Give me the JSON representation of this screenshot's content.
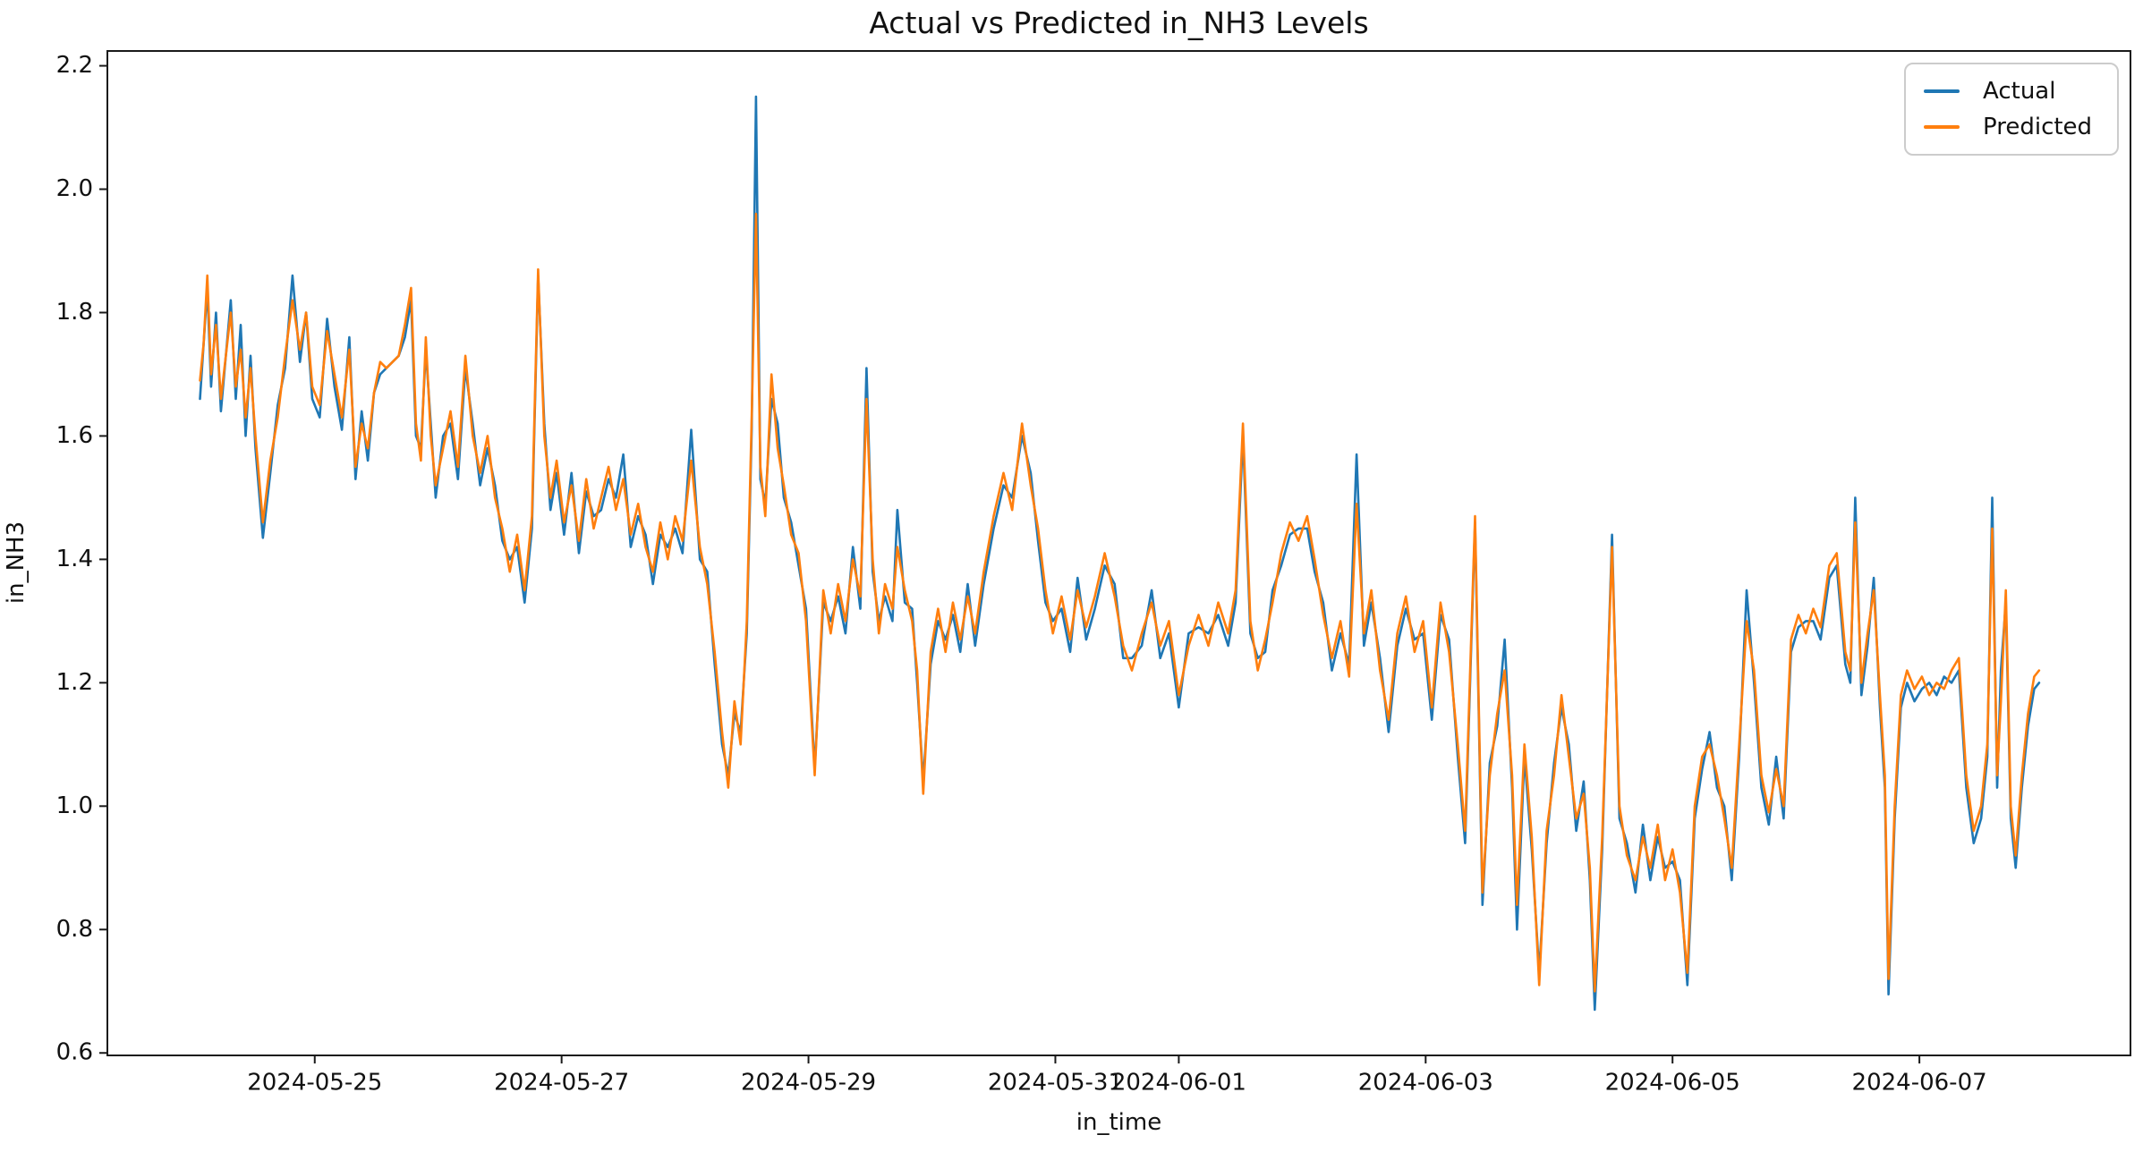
{
  "figure": {
    "title": "Actual vs Predicted in_NH3 Levels",
    "xlabel": "in_time",
    "ylabel": "in_NH3"
  },
  "legend": {
    "entries": [
      {
        "label": "Actual",
        "color": "#1f77b4"
      },
      {
        "label": "Predicted",
        "color": "#ff7f0e"
      }
    ],
    "position": "upper right"
  },
  "chart_data": {
    "type": "line",
    "title": "Actual vs Predicted in_NH3 Levels",
    "xlabel": "in_time",
    "ylabel": "in_NH3",
    "x_unit": "days since 2024-05-24 00:00",
    "xlim": [
      -0.68,
      15.71
    ],
    "ylim": [
      0.596,
      2.224
    ],
    "grid": false,
    "legend_position": "upper right",
    "yticks": [
      0.6,
      0.8,
      1.0,
      1.2,
      1.4,
      1.6,
      1.8,
      2.0,
      2.2
    ],
    "xticks": [
      {
        "d": 1,
        "label": "2024-05-25"
      },
      {
        "d": 3,
        "label": "2024-05-27"
      },
      {
        "d": 5,
        "label": "2024-05-29"
      },
      {
        "d": 7,
        "label": "2024-05-31"
      },
      {
        "d": 8,
        "label": "2024-06-01"
      },
      {
        "d": 10,
        "label": "2024-06-03"
      },
      {
        "d": 12,
        "label": "2024-06-05"
      },
      {
        "d": 14,
        "label": "2024-06-07"
      }
    ],
    "x": [
      0.07,
      0.1,
      0.13,
      0.16,
      0.2,
      0.24,
      0.28,
      0.32,
      0.36,
      0.4,
      0.44,
      0.48,
      0.52,
      0.58,
      0.64,
      0.7,
      0.76,
      0.82,
      0.88,
      0.93,
      0.98,
      1.04,
      1.1,
      1.16,
      1.22,
      1.28,
      1.33,
      1.38,
      1.43,
      1.48,
      1.53,
      1.58,
      1.63,
      1.68,
      1.73,
      1.78,
      1.82,
      1.86,
      1.9,
      1.94,
      1.98,
      2.04,
      2.1,
      2.16,
      2.22,
      2.28,
      2.34,
      2.4,
      2.46,
      2.52,
      2.58,
      2.64,
      2.7,
      2.76,
      2.81,
      2.86,
      2.91,
      2.96,
      3.02,
      3.08,
      3.14,
      3.2,
      3.26,
      3.32,
      3.38,
      3.44,
      3.5,
      3.56,
      3.62,
      3.68,
      3.74,
      3.8,
      3.86,
      3.92,
      3.98,
      4.05,
      4.12,
      4.18,
      4.24,
      4.3,
      4.35,
      4.4,
      4.45,
      4.5,
      4.54,
      4.575,
      4.61,
      4.65,
      4.7,
      4.75,
      4.8,
      4.86,
      4.92,
      4.98,
      5.05,
      5.12,
      5.18,
      5.24,
      5.3,
      5.36,
      5.42,
      5.47,
      5.52,
      5.57,
      5.62,
      5.68,
      5.72,
      5.78,
      5.84,
      5.88,
      5.93,
      5.99,
      6.05,
      6.11,
      6.17,
      6.23,
      6.29,
      6.35,
      6.42,
      6.5,
      6.58,
      6.65,
      6.73,
      6.8,
      6.86,
      6.92,
      6.98,
      7.05,
      7.12,
      7.18,
      7.25,
      7.32,
      7.4,
      7.48,
      7.55,
      7.62,
      7.7,
      7.78,
      7.85,
      7.92,
      8.0,
      8.08,
      8.16,
      8.24,
      8.32,
      8.4,
      8.46,
      8.52,
      8.58,
      8.64,
      8.7,
      8.76,
      8.83,
      8.9,
      8.97,
      9.04,
      9.1,
      9.17,
      9.24,
      9.31,
      9.38,
      9.44,
      9.5,
      9.56,
      9.63,
      9.7,
      9.77,
      9.84,
      9.91,
      9.98,
      10.05,
      10.12,
      10.19,
      10.26,
      10.32,
      10.4,
      10.46,
      10.52,
      10.58,
      10.64,
      10.7,
      10.74,
      10.8,
      10.86,
      10.92,
      10.98,
      11.04,
      11.1,
      11.16,
      11.22,
      11.28,
      11.33,
      11.37,
      11.43,
      11.51,
      11.57,
      11.63,
      11.7,
      11.76,
      11.82,
      11.88,
      11.94,
      12.0,
      12.06,
      12.12,
      12.18,
      12.24,
      12.3,
      12.36,
      12.42,
      12.48,
      12.54,
      12.6,
      12.66,
      12.72,
      12.78,
      12.84,
      12.9,
      12.96,
      13.02,
      13.08,
      13.14,
      13.2,
      13.27,
      13.33,
      13.4,
      13.44,
      13.48,
      13.53,
      13.58,
      13.63,
      13.68,
      13.72,
      13.75,
      13.8,
      13.85,
      13.9,
      13.96,
      14.02,
      14.08,
      14.14,
      14.2,
      14.26,
      14.32,
      14.38,
      14.44,
      14.5,
      14.55,
      14.59,
      14.63,
      14.66,
      14.7,
      14.74,
      14.78,
      14.83,
      14.88,
      14.93,
      14.97
    ],
    "series": [
      {
        "name": "Actual",
        "color": "#1f77b4",
        "values": [
          1.66,
          1.75,
          1.84,
          1.68,
          1.8,
          1.64,
          1.73,
          1.82,
          1.66,
          1.78,
          1.6,
          1.73,
          1.58,
          1.435,
          1.54,
          1.65,
          1.71,
          1.86,
          1.72,
          1.8,
          1.66,
          1.63,
          1.79,
          1.68,
          1.61,
          1.76,
          1.53,
          1.64,
          1.56,
          1.67,
          1.7,
          1.71,
          1.72,
          1.73,
          1.76,
          1.82,
          1.6,
          1.58,
          1.74,
          1.62,
          1.5,
          1.6,
          1.62,
          1.53,
          1.71,
          1.62,
          1.52,
          1.58,
          1.52,
          1.43,
          1.4,
          1.42,
          1.33,
          1.45,
          1.86,
          1.62,
          1.48,
          1.54,
          1.44,
          1.54,
          1.41,
          1.51,
          1.47,
          1.48,
          1.53,
          1.5,
          1.57,
          1.42,
          1.47,
          1.44,
          1.36,
          1.44,
          1.42,
          1.45,
          1.41,
          1.61,
          1.4,
          1.38,
          1.23,
          1.1,
          1.05,
          1.15,
          1.12,
          1.28,
          1.61,
          2.15,
          1.53,
          1.49,
          1.66,
          1.62,
          1.5,
          1.46,
          1.39,
          1.32,
          1.06,
          1.33,
          1.3,
          1.34,
          1.28,
          1.42,
          1.32,
          1.71,
          1.38,
          1.3,
          1.34,
          1.3,
          1.48,
          1.33,
          1.32,
          1.2,
          1.04,
          1.23,
          1.3,
          1.27,
          1.31,
          1.25,
          1.36,
          1.26,
          1.36,
          1.45,
          1.52,
          1.5,
          1.6,
          1.54,
          1.43,
          1.33,
          1.3,
          1.32,
          1.25,
          1.37,
          1.27,
          1.32,
          1.39,
          1.36,
          1.24,
          1.24,
          1.26,
          1.35,
          1.24,
          1.28,
          1.16,
          1.28,
          1.29,
          1.28,
          1.31,
          1.26,
          1.33,
          1.6,
          1.28,
          1.24,
          1.25,
          1.35,
          1.39,
          1.44,
          1.45,
          1.45,
          1.38,
          1.33,
          1.22,
          1.28,
          1.23,
          1.57,
          1.26,
          1.33,
          1.24,
          1.12,
          1.26,
          1.32,
          1.27,
          1.28,
          1.14,
          1.31,
          1.27,
          1.08,
          0.94,
          1.46,
          0.84,
          1.07,
          1.13,
          1.27,
          1.03,
          0.8,
          1.08,
          0.93,
          0.73,
          0.94,
          1.07,
          1.16,
          1.1,
          0.96,
          1.04,
          0.88,
          0.67,
          0.93,
          1.44,
          0.98,
          0.94,
          0.86,
          0.97,
          0.88,
          0.95,
          0.9,
          0.91,
          0.88,
          0.71,
          0.98,
          1.06,
          1.12,
          1.03,
          1.0,
          0.88,
          1.08,
          1.35,
          1.2,
          1.03,
          0.97,
          1.08,
          0.98,
          1.25,
          1.29,
          1.3,
          1.3,
          1.27,
          1.37,
          1.39,
          1.23,
          1.2,
          1.5,
          1.18,
          1.26,
          1.37,
          1.16,
          1.03,
          0.695,
          0.98,
          1.16,
          1.2,
          1.17,
          1.19,
          1.2,
          1.18,
          1.21,
          1.2,
          1.22,
          1.03,
          0.94,
          0.98,
          1.08,
          1.5,
          1.03,
          1.22,
          1.33,
          0.98,
          0.9,
          1.03,
          1.13,
          1.19,
          1.2
        ]
      },
      {
        "name": "Predicted",
        "color": "#ff7f0e",
        "values": [
          1.69,
          1.75,
          1.86,
          1.7,
          1.78,
          1.66,
          1.73,
          1.8,
          1.68,
          1.74,
          1.63,
          1.71,
          1.6,
          1.46,
          1.56,
          1.63,
          1.73,
          1.82,
          1.74,
          1.8,
          1.68,
          1.65,
          1.77,
          1.7,
          1.63,
          1.74,
          1.55,
          1.62,
          1.58,
          1.67,
          1.72,
          1.71,
          1.72,
          1.73,
          1.78,
          1.84,
          1.62,
          1.56,
          1.76,
          1.6,
          1.52,
          1.58,
          1.64,
          1.55,
          1.73,
          1.6,
          1.54,
          1.6,
          1.5,
          1.45,
          1.38,
          1.44,
          1.35,
          1.47,
          1.87,
          1.6,
          1.5,
          1.56,
          1.46,
          1.52,
          1.43,
          1.53,
          1.45,
          1.5,
          1.55,
          1.48,
          1.53,
          1.44,
          1.49,
          1.42,
          1.38,
          1.46,
          1.4,
          1.47,
          1.43,
          1.56,
          1.42,
          1.36,
          1.25,
          1.12,
          1.03,
          1.17,
          1.1,
          1.3,
          1.63,
          1.96,
          1.55,
          1.47,
          1.7,
          1.58,
          1.52,
          1.44,
          1.41,
          1.3,
          1.05,
          1.35,
          1.28,
          1.36,
          1.3,
          1.4,
          1.34,
          1.66,
          1.4,
          1.28,
          1.36,
          1.32,
          1.42,
          1.35,
          1.3,
          1.22,
          1.02,
          1.25,
          1.32,
          1.25,
          1.33,
          1.27,
          1.34,
          1.28,
          1.38,
          1.47,
          1.54,
          1.48,
          1.62,
          1.52,
          1.45,
          1.35,
          1.28,
          1.34,
          1.27,
          1.35,
          1.29,
          1.34,
          1.41,
          1.34,
          1.26,
          1.22,
          1.28,
          1.33,
          1.26,
          1.3,
          1.18,
          1.26,
          1.31,
          1.26,
          1.33,
          1.28,
          1.35,
          1.62,
          1.3,
          1.22,
          1.27,
          1.33,
          1.41,
          1.46,
          1.43,
          1.47,
          1.4,
          1.31,
          1.24,
          1.3,
          1.21,
          1.49,
          1.28,
          1.35,
          1.22,
          1.14,
          1.28,
          1.34,
          1.25,
          1.3,
          1.16,
          1.33,
          1.25,
          1.1,
          0.96,
          1.47,
          0.86,
          1.05,
          1.15,
          1.22,
          1.05,
          0.84,
          1.1,
          0.95,
          0.71,
          0.96,
          1.05,
          1.18,
          1.08,
          0.98,
          1.02,
          0.9,
          0.7,
          0.95,
          1.42,
          1.0,
          0.92,
          0.88,
          0.95,
          0.9,
          0.97,
          0.88,
          0.93,
          0.86,
          0.73,
          1.0,
          1.08,
          1.1,
          1.05,
          0.98,
          0.9,
          1.1,
          1.3,
          1.22,
          1.05,
          0.99,
          1.06,
          1.0,
          1.27,
          1.31,
          1.28,
          1.32,
          1.29,
          1.39,
          1.41,
          1.25,
          1.22,
          1.46,
          1.2,
          1.28,
          1.35,
          1.18,
          1.05,
          0.72,
          1.0,
          1.18,
          1.22,
          1.19,
          1.21,
          1.18,
          1.2,
          1.19,
          1.22,
          1.24,
          1.05,
          0.96,
          1.0,
          1.1,
          1.45,
          1.05,
          1.17,
          1.35,
          1.0,
          0.92,
          1.05,
          1.15,
          1.21,
          1.22
        ]
      }
    ]
  }
}
